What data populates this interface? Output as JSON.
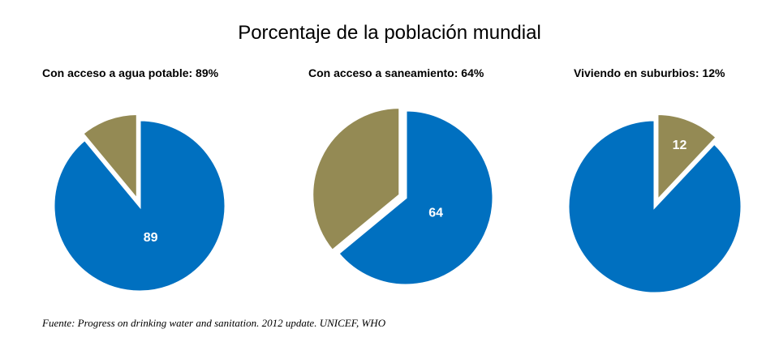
{
  "chart_data": {
    "title": "Porcentaje de la población mundial",
    "source": "Fuente: Progress on drinking water and sanitation. 2012 update. UNICEF, WHO",
    "colors": {
      "primary": "#0070C0",
      "secondary": "#948A54"
    },
    "charts": [
      {
        "type": "pie",
        "title": "Con acceso a agua potable: 89%",
        "values": [
          89,
          11
        ],
        "labels": [
          "89",
          ""
        ],
        "exploded": [
          false,
          true
        ]
      },
      {
        "type": "pie",
        "title": "Con acceso a saneamiento: 64%",
        "values": [
          64,
          36
        ],
        "labels": [
          "64",
          ""
        ],
        "exploded": [
          false,
          true
        ]
      },
      {
        "type": "pie",
        "title": "Viviendo en suburbios: 12%",
        "values": [
          88,
          12
        ],
        "labels": [
          "",
          "12"
        ],
        "exploded": [
          false,
          true
        ],
        "start_with_last": true
      }
    ]
  }
}
